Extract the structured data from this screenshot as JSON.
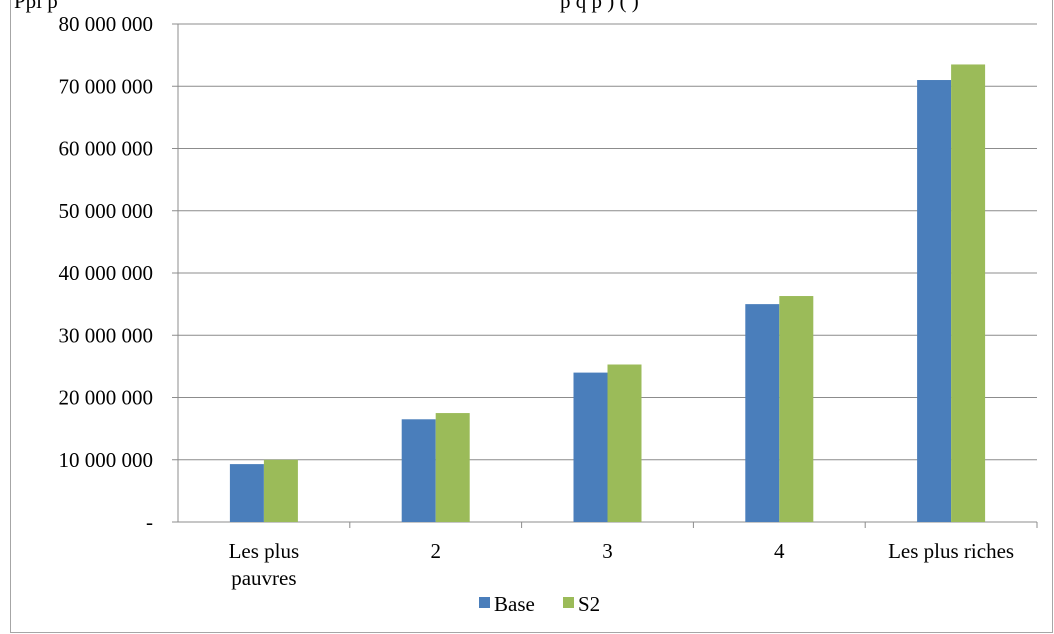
{
  "chart_data": {
    "type": "bar",
    "title": "",
    "xlabel": "",
    "ylabel": "",
    "categories": [
      [
        "Les plus",
        "pauvres"
      ],
      [
        "2"
      ],
      [
        "3"
      ],
      [
        "4"
      ],
      [
        "Les plus riches"
      ]
    ],
    "series": [
      {
        "name": "Base",
        "color": "#4a7ebb",
        "values": [
          9300000,
          16500000,
          24000000,
          35000000,
          71000000
        ]
      },
      {
        "name": "S2",
        "color": "#9bbb59",
        "values": [
          10000000,
          17500000,
          25300000,
          36300000,
          73500000
        ]
      }
    ],
    "ylim": [
      0,
      80000000
    ],
    "yticks": [
      0,
      10000000,
      20000000,
      30000000,
      40000000,
      50000000,
      60000000,
      70000000,
      80000000
    ],
    "ytick_labels": [
      "-",
      "10 000 000",
      "20 000 000",
      "30 000 000",
      "40 000 000",
      "50 000 000",
      "60 000 000",
      "70 000 000",
      "80 000 000"
    ],
    "grid": true,
    "legend_position": "bottom"
  },
  "cut_title": {
    "left": "Ppl p",
    "right": "p  q  p    ) (                           )"
  }
}
